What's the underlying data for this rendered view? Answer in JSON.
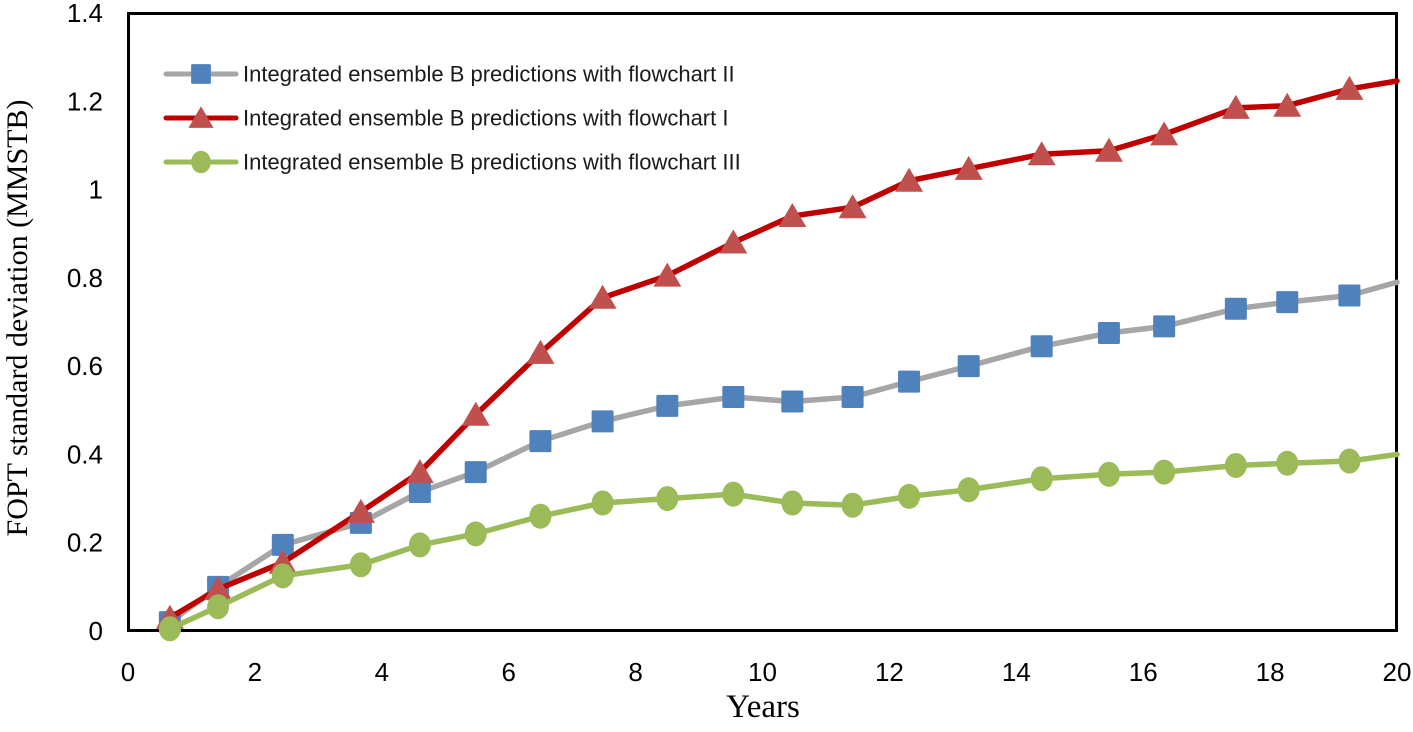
{
  "chart_data": {
    "type": "line",
    "title": "",
    "xlabel": "Years",
    "ylabel": "FOPT standard deviation (MMSTB)",
    "xlim": [
      0,
      20
    ],
    "ylim": [
      0,
      1.4
    ],
    "x_ticks": [
      0,
      2,
      4,
      6,
      8,
      10,
      12,
      14,
      16,
      18,
      20
    ],
    "y_ticks": [
      0,
      0.2,
      0.4,
      0.6,
      0.8,
      1,
      1.2,
      1.4
    ],
    "grid": false,
    "legend_position": "top-left-inside",
    "axis_color": "#000000",
    "x": [
      0.66,
      1.42,
      2.44,
      3.67,
      4.6,
      5.48,
      6.5,
      7.48,
      8.5,
      9.54,
      10.47,
      11.42,
      12.31,
      13.25,
      14.4,
      15.46,
      16.33,
      17.46,
      18.27,
      19.25
    ],
    "line_end_x": 20,
    "series": [
      {
        "name": "Integrated ensemble B predictions with flowchart II",
        "marker": "square",
        "marker_color": "#4F81BD",
        "line_color": "#A6A6A6",
        "values": [
          0.02,
          0.1,
          0.195,
          0.245,
          0.315,
          0.36,
          0.43,
          0.475,
          0.51,
          0.53,
          0.52,
          0.53,
          0.565,
          0.6,
          0.645,
          0.675,
          0.69,
          0.73,
          0.745,
          0.76
        ],
        "end_value": 0.79
      },
      {
        "name": "Integrated ensemble B predictions with flowchart I",
        "marker": "triangle",
        "marker_color": "#C0504D",
        "line_color": "#C00000",
        "values": [
          0.03,
          0.095,
          0.155,
          0.27,
          0.36,
          0.49,
          0.63,
          0.755,
          0.805,
          0.88,
          0.94,
          0.96,
          1.02,
          1.047,
          1.08,
          1.088,
          1.125,
          1.185,
          1.19,
          1.228
        ],
        "end_value": 1.246
      },
      {
        "name": "Integrated ensemble B predictions with flowchart III",
        "marker": "circle",
        "marker_color": "#9BBB59",
        "line_color": "#9BBB59",
        "values": [
          0.005,
          0.055,
          0.125,
          0.15,
          0.195,
          0.22,
          0.26,
          0.29,
          0.3,
          0.31,
          0.29,
          0.285,
          0.305,
          0.32,
          0.345,
          0.355,
          0.36,
          0.375,
          0.38,
          0.385
        ],
        "end_value": 0.4
      }
    ]
  }
}
